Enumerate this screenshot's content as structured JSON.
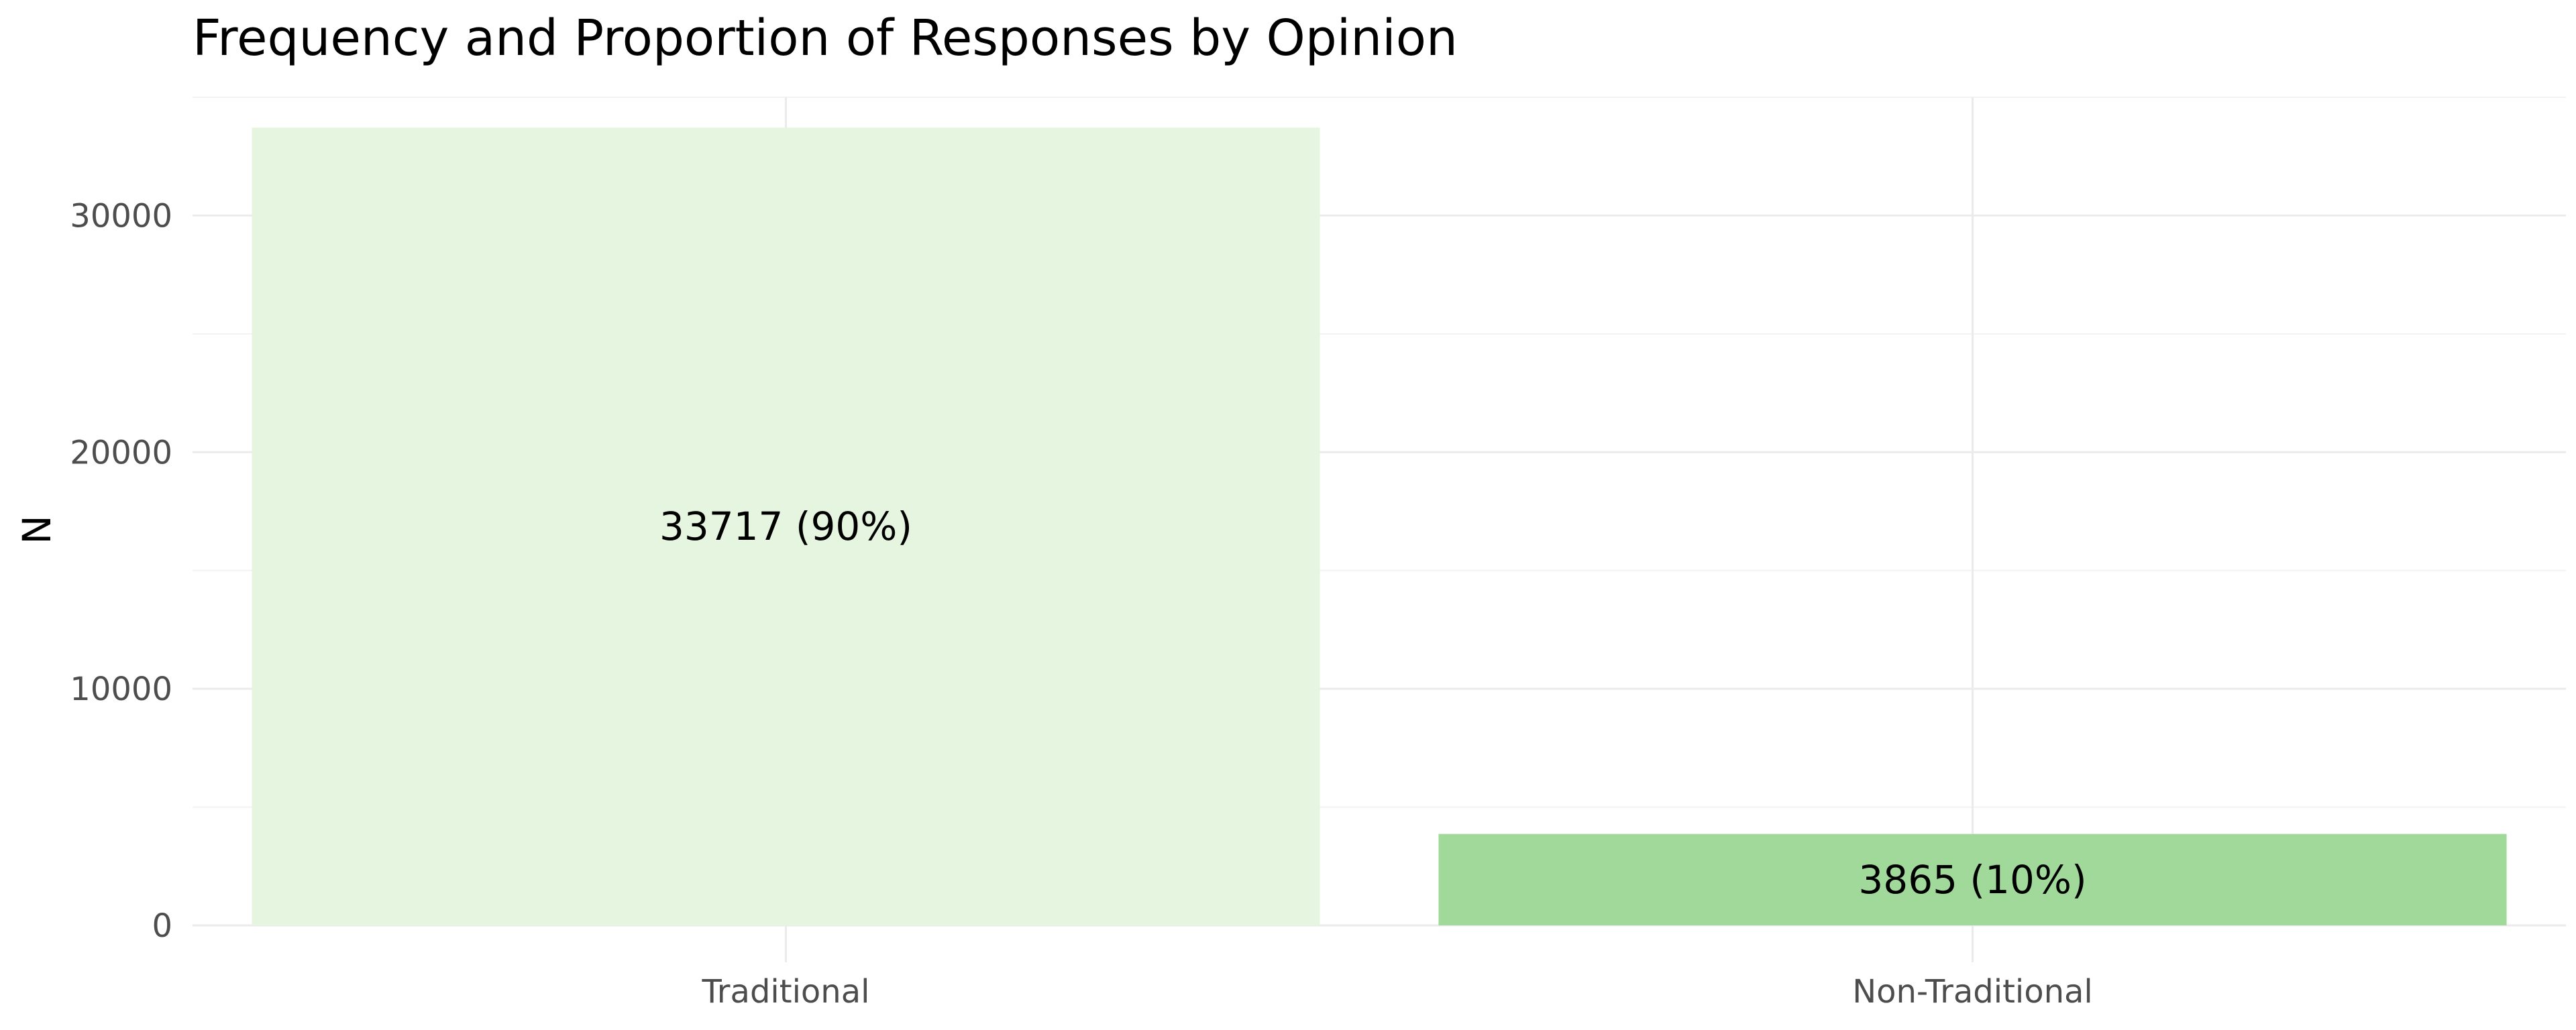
{
  "chart_data": {
    "type": "bar",
    "title": "Frequency and Proportion of Responses by Opinion",
    "xlabel": "",
    "ylabel": "N",
    "categories": [
      "Traditional",
      "Non-Traditional"
    ],
    "values": [
      33717,
      3865
    ],
    "data_labels": [
      "33717 (90%)",
      "3865 (10%)"
    ],
    "bar_colors": [
      "#e5f5e0",
      "#a1d99b"
    ],
    "ylim": [
      0,
      35000
    ],
    "y_ticks": [
      0,
      10000,
      20000,
      30000
    ],
    "y_tick_labels": [
      "0",
      "10000",
      "20000",
      "30000"
    ],
    "grid": true,
    "legend": "none"
  }
}
